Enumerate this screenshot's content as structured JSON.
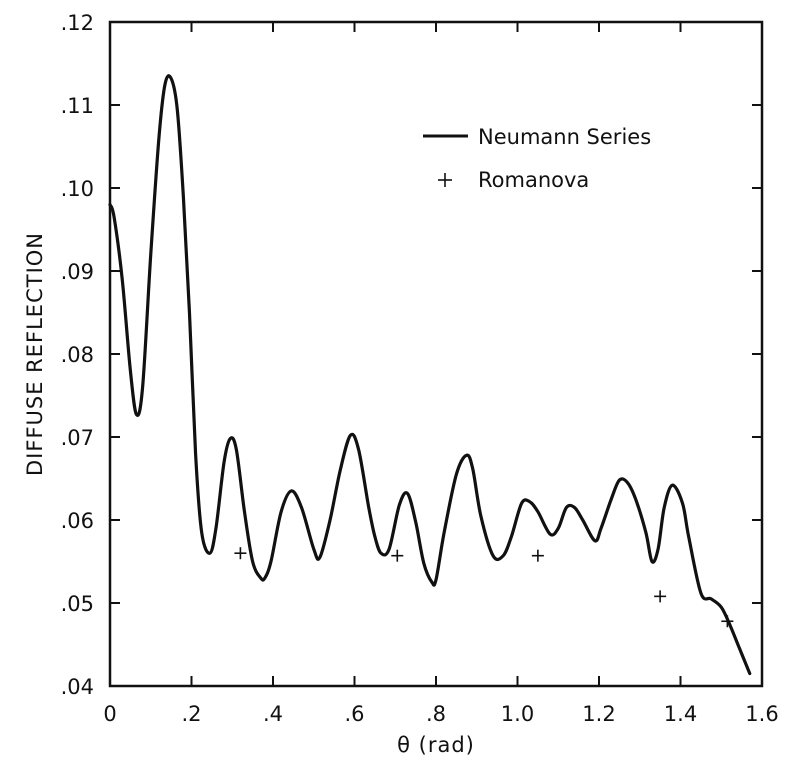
{
  "chart_data": {
    "type": "line",
    "title": "",
    "xlabel": "θ (rad)",
    "ylabel": "DIFFUSE REFLECTION",
    "xlim": [
      0,
      1.6
    ],
    "ylim": [
      0.04,
      0.12
    ],
    "xticks": [
      0,
      0.2,
      0.4,
      0.6,
      0.8,
      1.0,
      1.2,
      1.4,
      1.6
    ],
    "xtick_labels": [
      "0",
      ".2",
      ".4",
      ".6",
      ".8",
      "1.0",
      "1.2",
      "1.4",
      "1.6"
    ],
    "yticks": [
      0.04,
      0.05,
      0.06,
      0.07,
      0.08,
      0.09,
      0.1,
      0.11,
      0.12
    ],
    "ytick_labels": [
      ".04",
      ".05",
      ".06",
      ".07",
      ".08",
      ".09",
      ".10",
      ".11",
      ".12"
    ],
    "grid": false,
    "legend_position": "upper-right",
    "series": [
      {
        "name": "Neumann Series",
        "style": "line",
        "color": "#111111",
        "x": [
          0,
          0.01,
          0.03,
          0.05,
          0.065,
          0.08,
          0.1,
          0.12,
          0.135,
          0.15,
          0.165,
          0.18,
          0.195,
          0.21,
          0.225,
          0.245,
          0.26,
          0.28,
          0.295,
          0.31,
          0.33,
          0.35,
          0.37,
          0.38,
          0.395,
          0.42,
          0.445,
          0.47,
          0.5,
          0.515,
          0.54,
          0.565,
          0.59,
          0.61,
          0.635,
          0.65,
          0.665,
          0.685,
          0.71,
          0.73,
          0.75,
          0.77,
          0.79,
          0.8,
          0.82,
          0.85,
          0.875,
          0.89,
          0.91,
          0.94,
          0.965,
          0.985,
          1.01,
          1.03,
          1.05,
          1.08,
          1.1,
          1.12,
          1.14,
          1.16,
          1.19,
          1.205,
          1.23,
          1.25,
          1.27,
          1.29,
          1.315,
          1.33,
          1.345,
          1.36,
          1.38,
          1.405,
          1.42,
          1.45,
          1.475,
          1.5,
          1.52,
          1.545,
          1.57
        ],
        "y": [
          0.098,
          0.0965,
          0.089,
          0.078,
          0.0727,
          0.076,
          0.092,
          0.106,
          0.1125,
          0.1132,
          0.1095,
          0.099,
          0.085,
          0.068,
          0.0585,
          0.056,
          0.059,
          0.067,
          0.0698,
          0.0685,
          0.061,
          0.055,
          0.053,
          0.053,
          0.055,
          0.061,
          0.0635,
          0.0615,
          0.0565,
          0.0555,
          0.06,
          0.066,
          0.0702,
          0.0685,
          0.0615,
          0.058,
          0.056,
          0.0565,
          0.0618,
          0.0632,
          0.0598,
          0.0548,
          0.0525,
          0.0528,
          0.0585,
          0.0655,
          0.0678,
          0.0662,
          0.0605,
          0.0557,
          0.0557,
          0.058,
          0.062,
          0.0622,
          0.061,
          0.0583,
          0.059,
          0.0615,
          0.0615,
          0.06,
          0.0575,
          0.059,
          0.0625,
          0.0648,
          0.0645,
          0.0625,
          0.0585,
          0.055,
          0.0565,
          0.0615,
          0.0642,
          0.062,
          0.058,
          0.0512,
          0.0505,
          0.0495,
          0.0475,
          0.0445,
          0.0415
        ]
      },
      {
        "name": "Romanova",
        "style": "marker",
        "marker": "+",
        "color": "#111111",
        "x": [
          0.32,
          0.705,
          1.05,
          1.35,
          1.515
        ],
        "y": [
          0.056,
          0.0557,
          0.0557,
          0.0508,
          0.0478
        ]
      }
    ]
  }
}
